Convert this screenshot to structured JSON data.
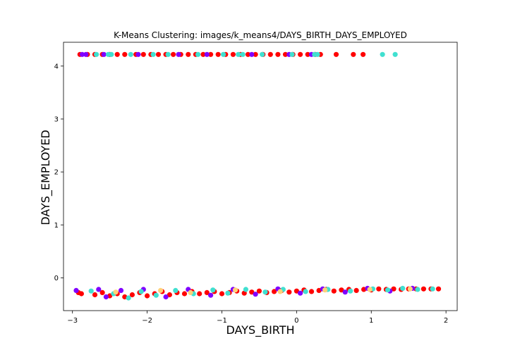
{
  "chart_data": {
    "type": "scatter",
    "title": "K-Means Clustering: images/k_means4/DAYS_BIRTH_DAYS_EMPLOYED",
    "xlabel": "DAYS_BIRTH",
    "ylabel": "DAYS_EMPLOYED",
    "xlim": [
      -3.12,
      2.15
    ],
    "ylim": [
      -0.62,
      4.45
    ],
    "xticks": [
      -3,
      -2,
      -1,
      0,
      1,
      2
    ],
    "yticks": [
      0,
      1,
      2,
      3,
      4
    ],
    "grid": false,
    "legend": "none",
    "cluster_colors": [
      "#ff0000",
      "#8000ff",
      "#40e0d0",
      "#ffd27a"
    ],
    "series": [
      {
        "cluster": 0,
        "color": "#ff0000",
        "points": [
          [
            -2.9,
            4.22
          ],
          [
            -2.8,
            4.22
          ],
          [
            -2.7,
            4.22
          ],
          [
            -2.6,
            4.22
          ],
          [
            -2.5,
            4.22
          ],
          [
            -2.4,
            4.22
          ],
          [
            -2.3,
            4.22
          ],
          [
            -2.15,
            4.22
          ],
          [
            -2.05,
            4.22
          ],
          [
            -1.95,
            4.22
          ],
          [
            -1.85,
            4.22
          ],
          [
            -1.75,
            4.22
          ],
          [
            -1.65,
            4.22
          ],
          [
            -1.55,
            4.22
          ],
          [
            -1.45,
            4.22
          ],
          [
            -1.35,
            4.22
          ],
          [
            -1.25,
            4.22
          ],
          [
            -1.15,
            4.22
          ],
          [
            -1.05,
            4.22
          ],
          [
            -0.95,
            4.22
          ],
          [
            -0.85,
            4.22
          ],
          [
            -0.75,
            4.22
          ],
          [
            -0.65,
            4.22
          ],
          [
            -0.55,
            4.22
          ],
          [
            -0.45,
            4.22
          ],
          [
            -0.35,
            4.22
          ],
          [
            -0.25,
            4.22
          ],
          [
            -0.15,
            4.22
          ],
          [
            -0.05,
            4.22
          ],
          [
            0.05,
            4.22
          ],
          [
            0.15,
            4.22
          ],
          [
            0.25,
            4.22
          ],
          [
            0.32,
            4.22
          ],
          [
            0.53,
            4.22
          ],
          [
            0.76,
            4.22
          ],
          [
            0.89,
            4.22
          ],
          [
            -2.92,
            -0.28
          ],
          [
            -2.88,
            -0.3
          ],
          [
            -2.7,
            -0.32
          ],
          [
            -2.6,
            -0.28
          ],
          [
            -2.5,
            -0.34
          ],
          [
            -2.4,
            -0.3
          ],
          [
            -2.3,
            -0.36
          ],
          [
            -2.2,
            -0.32
          ],
          [
            -2.1,
            -0.28
          ],
          [
            -2.0,
            -0.34
          ],
          [
            -1.9,
            -0.3
          ],
          [
            -1.8,
            -0.26
          ],
          [
            -1.7,
            -0.32
          ],
          [
            -1.6,
            -0.28
          ],
          [
            -1.5,
            -0.3
          ],
          [
            -1.4,
            -0.26
          ],
          [
            -1.3,
            -0.3
          ],
          [
            -1.2,
            -0.28
          ],
          [
            -1.1,
            -0.26
          ],
          [
            -1.0,
            -0.3
          ],
          [
            -0.9,
            -0.28
          ],
          [
            -0.8,
            -0.25
          ],
          [
            -0.7,
            -0.29
          ],
          [
            -0.6,
            -0.27
          ],
          [
            -0.5,
            -0.25
          ],
          [
            -0.4,
            -0.28
          ],
          [
            -0.3,
            -0.26
          ],
          [
            -0.2,
            -0.24
          ],
          [
            -0.1,
            -0.27
          ],
          [
            0.0,
            -0.25
          ],
          [
            0.1,
            -0.23
          ],
          [
            0.2,
            -0.26
          ],
          [
            0.3,
            -0.24
          ],
          [
            0.4,
            -0.22
          ],
          [
            0.5,
            -0.25
          ],
          [
            0.6,
            -0.23
          ],
          [
            0.7,
            -0.22
          ],
          [
            0.8,
            -0.24
          ],
          [
            0.9,
            -0.22
          ],
          [
            1.0,
            -0.23
          ],
          [
            1.1,
            -0.21
          ],
          [
            1.2,
            -0.22
          ],
          [
            1.3,
            -0.21
          ],
          [
            1.4,
            -0.22
          ],
          [
            1.5,
            -0.21
          ],
          [
            1.6,
            -0.21
          ],
          [
            1.7,
            -0.21
          ],
          [
            1.8,
            -0.21
          ],
          [
            1.9,
            -0.21
          ]
        ]
      },
      {
        "cluster": 1,
        "color": "#8000ff",
        "points": [
          [
            -2.87,
            4.22
          ],
          [
            -2.82,
            4.22
          ],
          [
            -2.58,
            4.22
          ],
          [
            -2.12,
            4.22
          ],
          [
            -1.58,
            4.22
          ],
          [
            -1.2,
            4.22
          ],
          [
            -0.6,
            4.22
          ],
          [
            -0.1,
            4.22
          ],
          [
            0.2,
            4.22
          ],
          [
            -2.95,
            -0.24
          ],
          [
            -2.65,
            -0.22
          ],
          [
            -2.55,
            -0.36
          ],
          [
            -2.35,
            -0.24
          ],
          [
            -2.05,
            -0.22
          ],
          [
            -1.75,
            -0.36
          ],
          [
            -1.45,
            -0.22
          ],
          [
            -1.15,
            -0.33
          ],
          [
            -0.85,
            -0.22
          ],
          [
            -0.55,
            -0.31
          ],
          [
            -0.25,
            -0.21
          ],
          [
            0.05,
            -0.29
          ],
          [
            0.35,
            -0.21
          ],
          [
            0.65,
            -0.27
          ],
          [
            0.95,
            -0.2
          ],
          [
            1.25,
            -0.25
          ],
          [
            1.55,
            -0.2
          ]
        ]
      },
      {
        "cluster": 2,
        "color": "#40e0d0",
        "points": [
          [
            -2.68,
            4.22
          ],
          [
            -2.52,
            4.22
          ],
          [
            -2.48,
            4.22
          ],
          [
            -2.22,
            4.22
          ],
          [
            -1.92,
            4.22
          ],
          [
            -1.72,
            4.22
          ],
          [
            -1.32,
            4.22
          ],
          [
            -0.98,
            4.22
          ],
          [
            -0.78,
            4.22
          ],
          [
            -0.72,
            4.22
          ],
          [
            -0.46,
            4.22
          ],
          [
            -0.06,
            4.22
          ],
          [
            0.24,
            4.22
          ],
          [
            0.28,
            4.22
          ],
          [
            1.15,
            4.22
          ],
          [
            1.32,
            4.22
          ],
          [
            -2.75,
            -0.25
          ],
          [
            -2.45,
            -0.3
          ],
          [
            -2.25,
            -0.38
          ],
          [
            -2.08,
            -0.26
          ],
          [
            -1.88,
            -0.33
          ],
          [
            -1.62,
            -0.24
          ],
          [
            -1.38,
            -0.3
          ],
          [
            -1.12,
            -0.23
          ],
          [
            -0.92,
            -0.29
          ],
          [
            -0.68,
            -0.22
          ],
          [
            -0.42,
            -0.27
          ],
          [
            -0.18,
            -0.22
          ],
          [
            0.12,
            -0.26
          ],
          [
            0.42,
            -0.22
          ],
          [
            0.72,
            -0.25
          ],
          [
            1.02,
            -0.21
          ],
          [
            1.22,
            -0.23
          ],
          [
            1.42,
            -0.2
          ],
          [
            1.62,
            -0.22
          ],
          [
            1.82,
            -0.21
          ]
        ]
      },
      {
        "cluster": 3,
        "color": "#ffd27a",
        "points": [
          [
            -2.42,
            -0.27
          ],
          [
            -1.82,
            -0.24
          ],
          [
            -1.42,
            -0.28
          ],
          [
            -0.82,
            -0.23
          ],
          [
            -0.22,
            -0.26
          ],
          [
            0.38,
            -0.23
          ],
          [
            0.98,
            -0.22
          ],
          [
            1.52,
            -0.21
          ]
        ]
      }
    ]
  }
}
